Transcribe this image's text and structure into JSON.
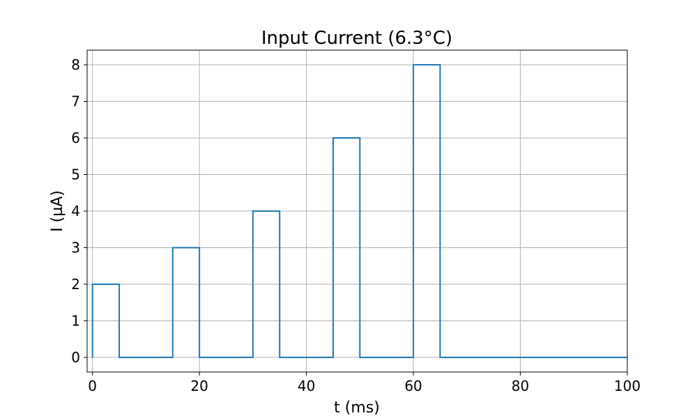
{
  "chart_data": {
    "type": "line",
    "title": "Input Current (6.3°C)",
    "xlabel": "t (ms)",
    "ylabel": "I (µA)",
    "xlim": [
      -1,
      100
    ],
    "ylim": [
      -0.4,
      8.4
    ],
    "xticks": [
      0,
      20,
      40,
      60,
      80,
      100
    ],
    "yticks": [
      0,
      1,
      2,
      3,
      4,
      5,
      6,
      7,
      8
    ],
    "grid": true,
    "legend": "none",
    "series": [
      {
        "color": "#1f77b4",
        "step": true,
        "x": [
          0,
          0,
          5,
          5,
          15,
          15,
          20,
          20,
          30,
          30,
          35,
          35,
          45,
          45,
          50,
          50,
          60,
          60,
          65,
          65,
          100
        ],
        "y": [
          0,
          2,
          2,
          0,
          0,
          3,
          3,
          0,
          0,
          4,
          4,
          0,
          0,
          6,
          6,
          0,
          0,
          8,
          8,
          0,
          0
        ]
      }
    ]
  }
}
